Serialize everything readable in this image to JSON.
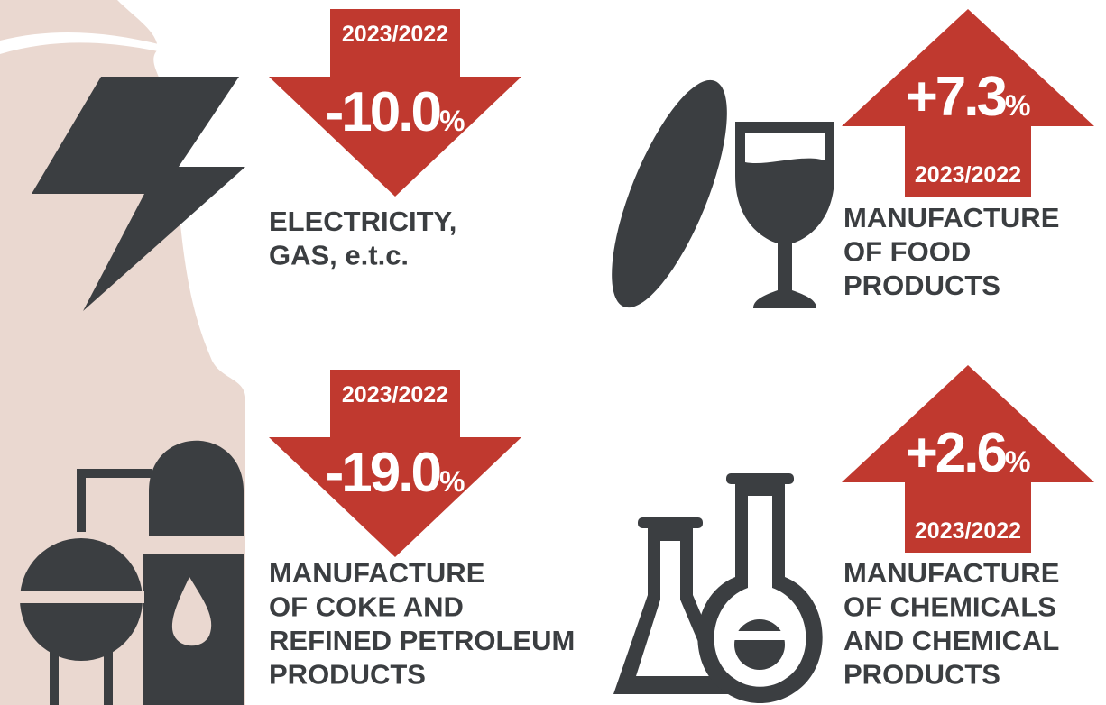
{
  "items": [
    {
      "period": "2023/2022",
      "change": "-10.0",
      "unit": "%",
      "label": [
        "ELECTRICITY,",
        "GAS, e.t.c."
      ]
    },
    {
      "period": "2023/2022",
      "change": "+7.3",
      "unit": "%",
      "label": [
        "MANUFACTURE",
        "OF FOOD",
        "PRODUCTS"
      ]
    },
    {
      "period": "2023/2022",
      "change": "-19.0",
      "unit": "%",
      "label": [
        "MANUFACTURE",
        "OF COKE AND",
        "REFINED PETROLEUM",
        "PRODUCTS"
      ]
    },
    {
      "period": "2023/2022",
      "change": "+2.6",
      "unit": "%",
      "label": [
        "MANUFACTURE",
        "OF CHEMICALS",
        "AND CHEMICAL",
        "PRODUCTS"
      ]
    }
  ]
}
